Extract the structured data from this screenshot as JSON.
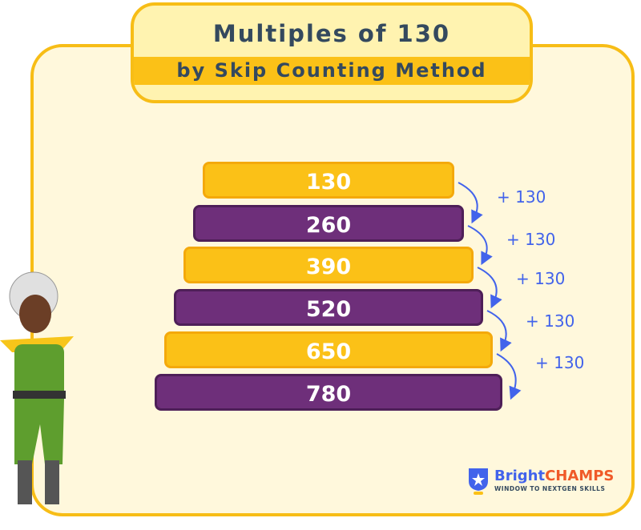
{
  "title": {
    "line1": "Multiples of  130",
    "line2": "by Skip Counting Method"
  },
  "bars": [
    "130",
    "260",
    "390",
    "520",
    "650",
    "780"
  ],
  "increments": [
    "+ 130",
    "+ 130",
    "+ 130",
    "+ 130",
    "+ 130"
  ],
  "brand": {
    "name_part1": "Bright",
    "name_part2": "CHAMPS",
    "tagline": "WINDOW TO NEXTGEN SKILLS"
  },
  "colors": {
    "yellow": "#fbc117",
    "purple": "#6e2f7a",
    "arrow": "#4263eb",
    "text": "#34495e"
  }
}
